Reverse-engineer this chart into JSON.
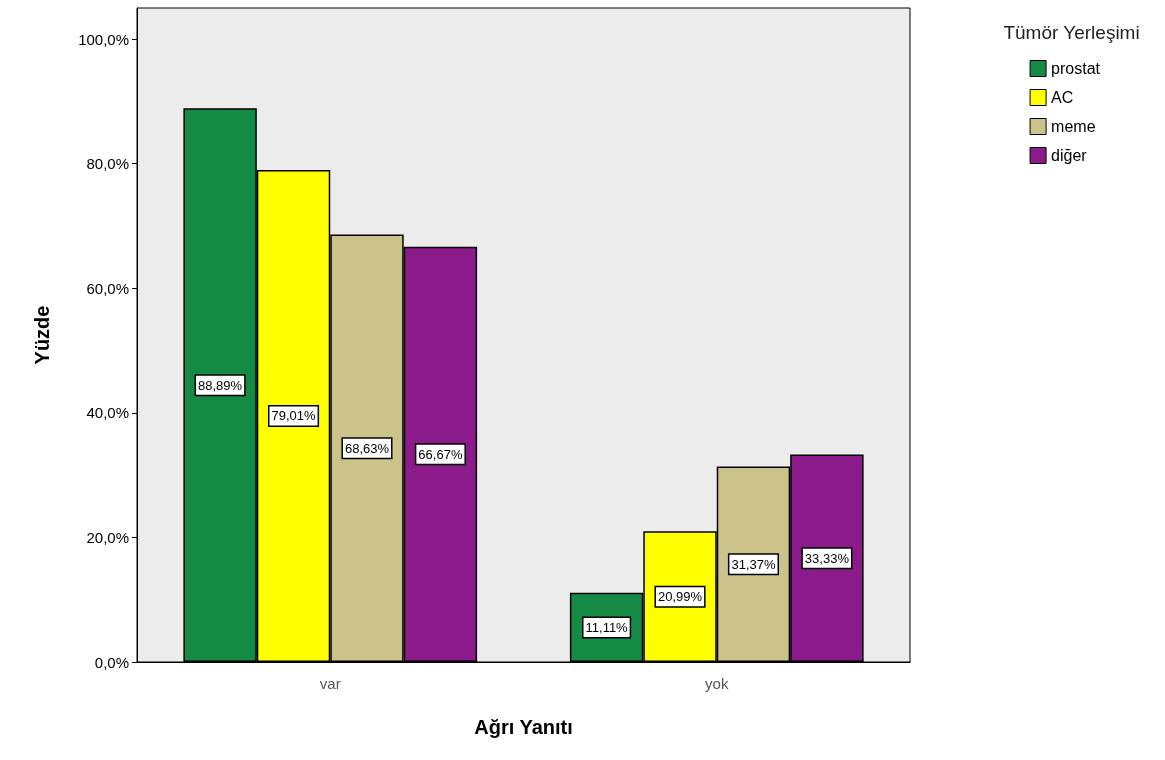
{
  "chart_data": {
    "type": "bar",
    "xlabel": "Ağrı Yanıtı",
    "ylabel": "Yüzde",
    "legend_title": "Tümör Yerleşimi",
    "categories": [
      "var",
      "yok"
    ],
    "series": [
      {
        "name": "prostat",
        "color": "#148a45",
        "values": [
          88.89,
          11.11
        ],
        "value_labels": [
          "88,89%",
          "11,11%"
        ]
      },
      {
        "name": "AC",
        "color": "#ffff00",
        "values": [
          79.01,
          20.99
        ],
        "value_labels": [
          "79,01%",
          "20,99%"
        ]
      },
      {
        "name": "meme",
        "color": "#cbc38a",
        "values": [
          68.63,
          31.37
        ],
        "value_labels": [
          "68,63%",
          "31,37%"
        ]
      },
      {
        "name": "diğer",
        "color": "#8b1a8b",
        "values": [
          66.67,
          33.33
        ],
        "value_labels": [
          "66,67%",
          "33,33%"
        ]
      }
    ],
    "ylim": [
      0,
      105
    ],
    "yticks": [
      {
        "value": 0,
        "label": "0,0%"
      },
      {
        "value": 20,
        "label": "20,0%"
      },
      {
        "value": 40,
        "label": "40,0%"
      },
      {
        "value": 60,
        "label": "60,0%"
      },
      {
        "value": 80,
        "label": "80,0%"
      },
      {
        "value": 100,
        "label": "100,0%"
      }
    ],
    "grid": false,
    "legend": "top right"
  }
}
